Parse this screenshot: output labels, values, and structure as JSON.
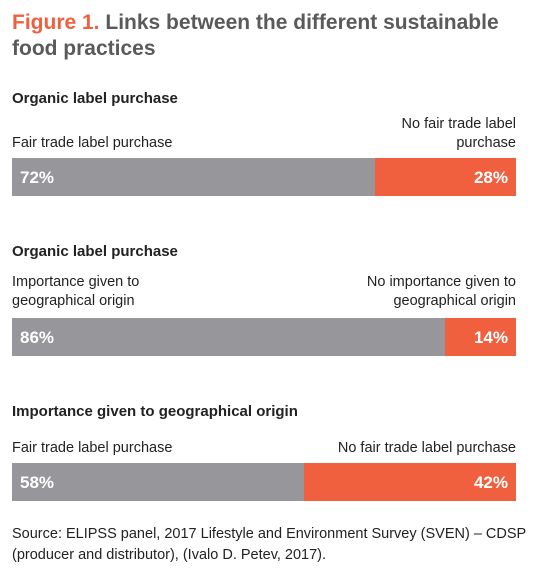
{
  "figure": {
    "label": "Figure 1.",
    "title": "Links between the different sustainable food practices"
  },
  "colors": {
    "title_label": "#f0603f",
    "title_text": "#5a5a5a",
    "segment_a": "#97979b",
    "segment_b": "#f0603f"
  },
  "chart_data": [
    {
      "type": "bar",
      "title": "Organic label purchase",
      "stacked": true,
      "orientation": "horizontal",
      "series": [
        {
          "name": "Fair trade label purchase",
          "value": 72,
          "label": "72%"
        },
        {
          "name": "No fair trade label purchase",
          "value": 28,
          "label": "28%"
        }
      ]
    },
    {
      "type": "bar",
      "title": "Organic label purchase",
      "stacked": true,
      "orientation": "horizontal",
      "series": [
        {
          "name": "Importance given to geographical origin",
          "value": 86,
          "label": "86%"
        },
        {
          "name": "No importance given to geographical origin",
          "value": 14,
          "label": "14%"
        }
      ]
    },
    {
      "type": "bar",
      "title": "Importance given to geographical origin",
      "stacked": true,
      "orientation": "horizontal",
      "series": [
        {
          "name": "Fair trade label purchase",
          "value": 58,
          "label": "58%"
        },
        {
          "name": "No fair trade label purchase",
          "value": 42,
          "label": "42%"
        }
      ]
    }
  ],
  "source": "Source: ELIPSS panel, 2017 Lifestyle and Environment Survey (SVEN) – CDSP (producer and distributor), (Ivalo D. Petev, 2017)."
}
